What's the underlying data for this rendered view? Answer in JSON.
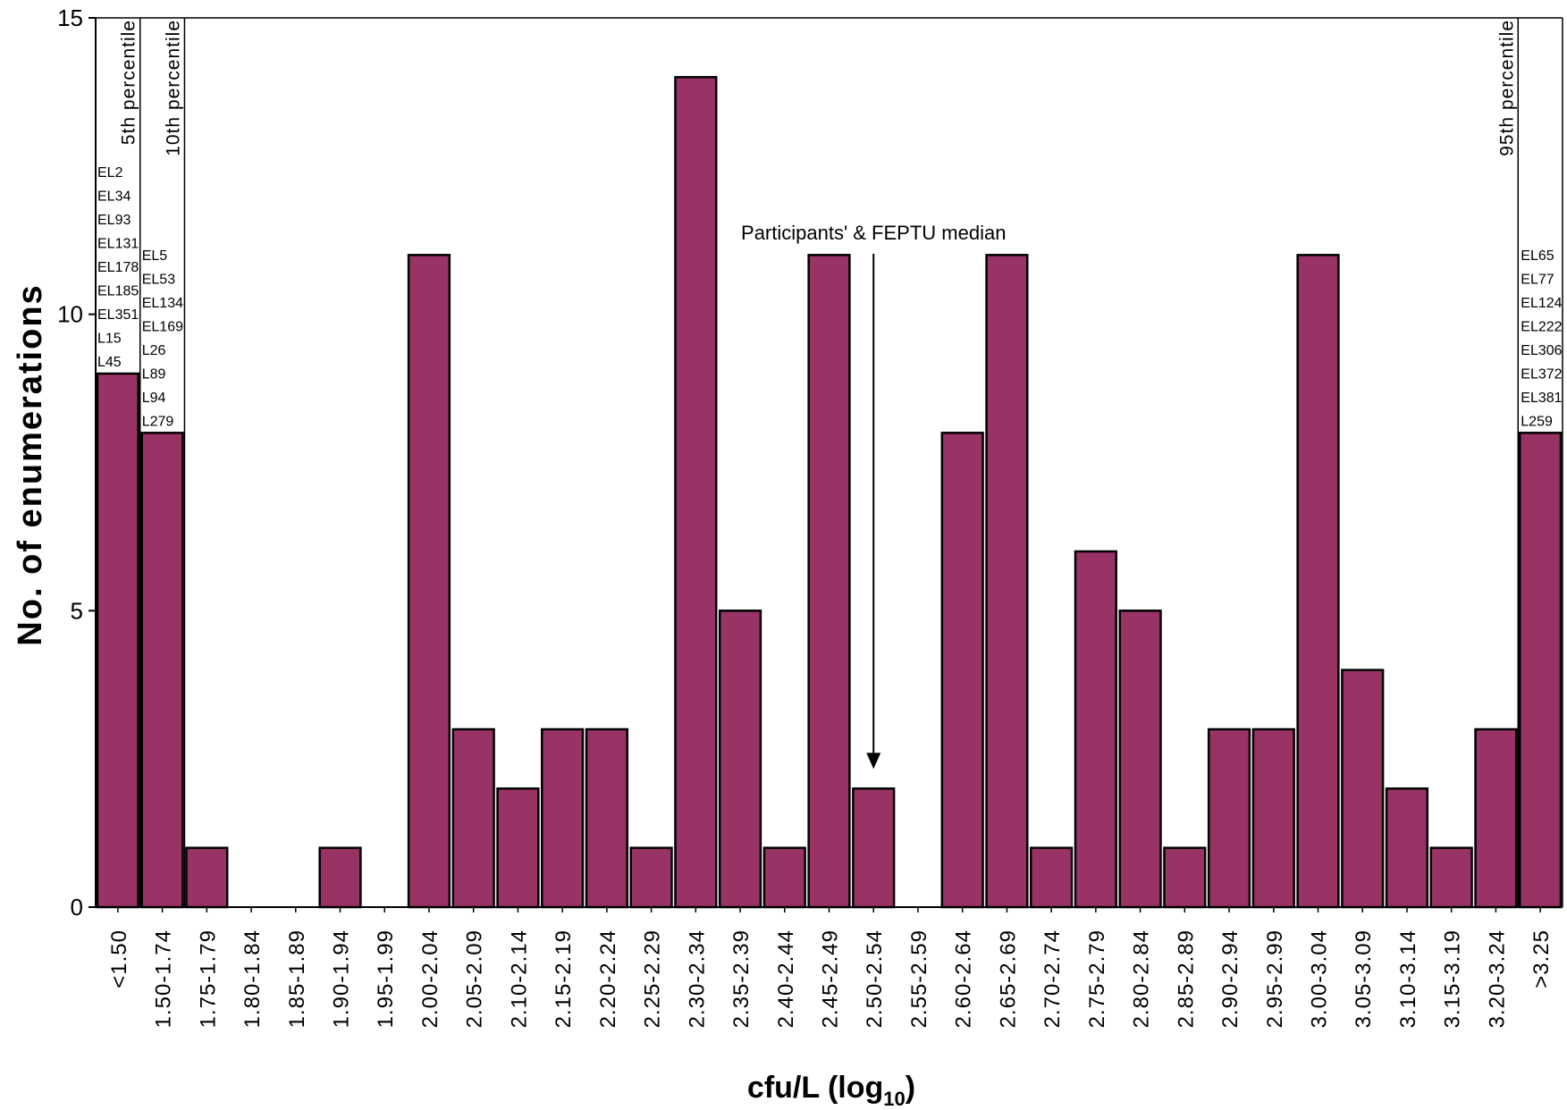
{
  "chart_data": {
    "type": "bar",
    "xlabel": "cfu/L (log",
    "xlabel_subscript": "10",
    "xlabel_suffix": ")",
    "ylabel": "No. of enumerations",
    "ylim": [
      0,
      15
    ],
    "yticks": [
      0,
      5,
      10,
      15
    ],
    "grid": false,
    "bar_color": "#993366",
    "categories": [
      "<1.50",
      "1.50-1.74",
      "1.75-1.79",
      "1.80-1.84",
      "1.85-1.89",
      "1.90-1.94",
      "1.95-1.99",
      "2.00-2.04",
      "2.05-2.09",
      "2.10-2.14",
      "2.15-2.19",
      "2.20-2.24",
      "2.25-2.29",
      "2.30-2.34",
      "2.35-2.39",
      "2.40-2.44",
      "2.45-2.49",
      "2.50-2.54",
      "2.55-2.59",
      "2.60-2.64",
      "2.65-2.69",
      "2.70-2.74",
      "2.75-2.79",
      "2.80-2.84",
      "2.85-2.89",
      "2.90-2.94",
      "2.95-2.99",
      "3.00-3.04",
      "3.05-3.09",
      "3.10-3.14",
      "3.15-3.19",
      "3.20-3.24",
      ">3.25"
    ],
    "values": [
      9,
      8,
      1,
      0,
      0,
      1,
      0,
      11,
      3,
      2,
      3,
      3,
      1,
      14,
      5,
      1,
      11,
      2,
      0,
      8,
      11,
      1,
      6,
      5,
      1,
      3,
      3,
      11,
      4,
      2,
      1,
      3,
      8
    ],
    "percentile_lines": [
      {
        "label": "5th percentile",
        "between": [
          0,
          1
        ],
        "codes": [
          "EL2",
          "EL34",
          "EL93",
          "EL131",
          "EL178",
          "EL185",
          "EL351",
          "L15",
          "L45"
        ]
      },
      {
        "label": "10th percentile",
        "between": [
          1,
          2
        ],
        "codes": [
          "EL5",
          "EL53",
          "EL134",
          "EL169",
          "L26",
          "L89",
          "L94",
          "L279"
        ]
      },
      {
        "label": "95th percentile",
        "between": [
          31,
          32
        ],
        "codes": [
          "EL65",
          "EL77",
          "EL124",
          "EL222",
          "EL306",
          "EL372",
          "EL381",
          "L259"
        ]
      }
    ],
    "annotations": [
      {
        "text": "Participants' & FEPTU median",
        "category_index": 17
      }
    ]
  }
}
